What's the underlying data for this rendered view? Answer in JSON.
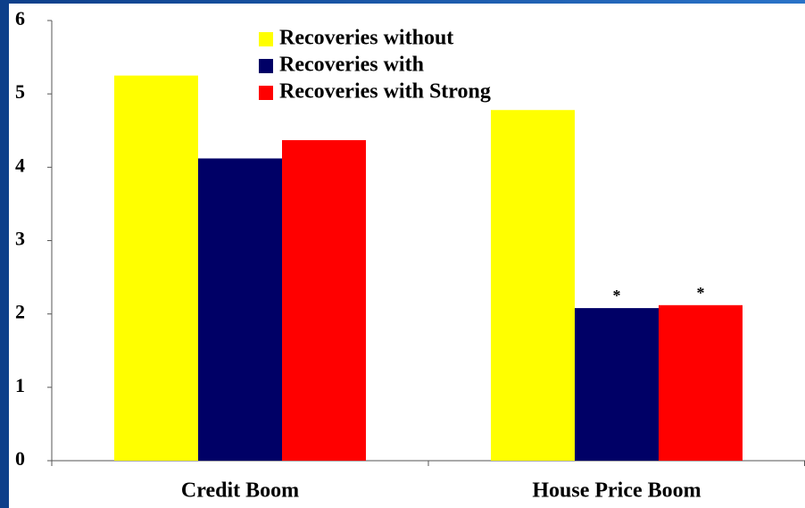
{
  "chart_data": {
    "type": "bar",
    "categories": [
      "Credit Boom",
      "House Price Boom"
    ],
    "series": [
      {
        "name": "Recoveries without",
        "color": "#ffff00",
        "values": [
          5.25,
          4.78
        ]
      },
      {
        "name": "Recoveries with",
        "color": "#000066",
        "values": [
          4.12,
          2.08
        ]
      },
      {
        "name": "Recoveries with Strong",
        "color": "#ff0000",
        "values": [
          4.37,
          2.12
        ]
      }
    ],
    "annotations": [
      {
        "text": "*",
        "series": 1,
        "category": 1
      },
      {
        "text": "*",
        "series": 2,
        "category": 1
      }
    ],
    "ylim": [
      0,
      6
    ],
    "yticks": [
      0,
      1,
      2,
      3,
      4,
      5,
      6
    ],
    "grid": false,
    "legend": "top"
  }
}
